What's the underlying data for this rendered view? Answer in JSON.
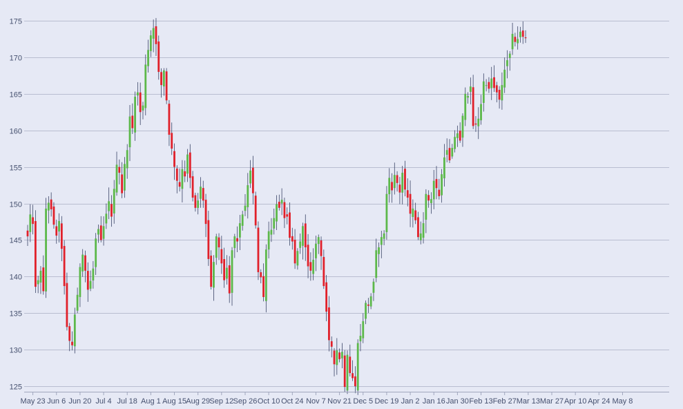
{
  "chart_data": {
    "type": "candlestick",
    "ylim": [
      124.5,
      176.5
    ],
    "y_ticks": [
      125,
      130,
      135,
      140,
      145,
      150,
      155,
      160,
      165,
      170,
      175
    ],
    "x_tick_labels": [
      "May 23",
      "Jun 6",
      "Jun 20",
      "Jul 4",
      "Jul 18",
      "Aug 1",
      "Aug 15",
      "Aug 29",
      "Sep 12",
      "Sep 26",
      "Oct 10",
      "Oct 24",
      "Nov 7",
      "Nov 21",
      "Dec 5",
      "Dec 19",
      "Jan 2",
      "Jan 16",
      "Jan 30",
      "Feb 13",
      "Feb 27",
      "Mar 13",
      "Mar 27",
      "Apr 10",
      "Apr 24",
      "May 8"
    ],
    "grid": true,
    "colors": {
      "up": "#5cb84a",
      "down": "#e0202a",
      "wick": "#3a4466",
      "grid": "#b9bdd0",
      "background": "#e6e9f5"
    },
    "closes": [
      145.5,
      148.5,
      147.2,
      138.6,
      139.5,
      140.8,
      138.0,
      149.3,
      150.1,
      149.2,
      147.1,
      145.6,
      147.6,
      143.8,
      138.7,
      133.1,
      131.2,
      130.6,
      134.8,
      137.5,
      141.3,
      143.0,
      140.8,
      138.2,
      139.4,
      141.1,
      145.2,
      146.5,
      145.0,
      146.9,
      148.6,
      150.3,
      148.2,
      152.0,
      155.3,
      154.2,
      151.4,
      155.4,
      157.3,
      161.9,
      160.3,
      164.6,
      165.2,
      162.5,
      163.4,
      169.0,
      171.0,
      173.0,
      174.0,
      171.8,
      168.0,
      166.2,
      168.2,
      164.1,
      159.4,
      157.5,
      155.0,
      153.1,
      152.3,
      154.7,
      153.7,
      156.7,
      153.5,
      150.8,
      149.4,
      150.4,
      152.3,
      150.4,
      147.2,
      142.4,
      138.6,
      142.0,
      145.5,
      144.0,
      141.8,
      139.5,
      141.2,
      137.7,
      143.6,
      145.5,
      144.8,
      147.3,
      148.5,
      149.7,
      152.5,
      154.5,
      151.4,
      147.0,
      140.6,
      139.9,
      137.2,
      143.7,
      146.2,
      146.4,
      148.0,
      149.9,
      149.4,
      150.5,
      148.0,
      148.2,
      145.3,
      144.8,
      141.8,
      143.5,
      144.8,
      146.9,
      144.0,
      141.4,
      140.8,
      142.3,
      144.5,
      145.4,
      142.8,
      138.7,
      135.2,
      131.3,
      130.4,
      128.0,
      129.9,
      128.7,
      129.7,
      124.9,
      129.3,
      126.8,
      126.1,
      125.0,
      130.9,
      131.9,
      133.9,
      136.4,
      136.0,
      137.3,
      139.3,
      143.6,
      144.0,
      145.4,
      145.9,
      151.3,
      153.5,
      151.8,
      153.9,
      152.8,
      151.5,
      154.2,
      151.9,
      150.8,
      148.6,
      149.3,
      147.7,
      145.4,
      145.9,
      147.3,
      151.3,
      150.4,
      150.6,
      153.1,
      152.1,
      151.0,
      154.0,
      156.3,
      157.3,
      155.9,
      157.6,
      159.1,
      159.6,
      158.6,
      162.0,
      165.0,
      164.7,
      166.0,
      160.6,
      160.8,
      161.6,
      163.6,
      166.7,
      166.2,
      165.7,
      167.1,
      165.8,
      165.2,
      164.2,
      166.2,
      168.3,
      169.6,
      170.5,
      173.2,
      172.1,
      172.5,
      173.5,
      172.8,
      172.7
    ],
    "x_tick_indices": [
      2,
      11,
      20,
      29,
      38,
      47,
      56,
      65,
      74,
      83,
      92,
      101,
      110,
      119,
      128,
      137,
      146,
      155,
      164,
      173,
      182,
      191,
      200,
      209,
      218,
      227
    ]
  }
}
